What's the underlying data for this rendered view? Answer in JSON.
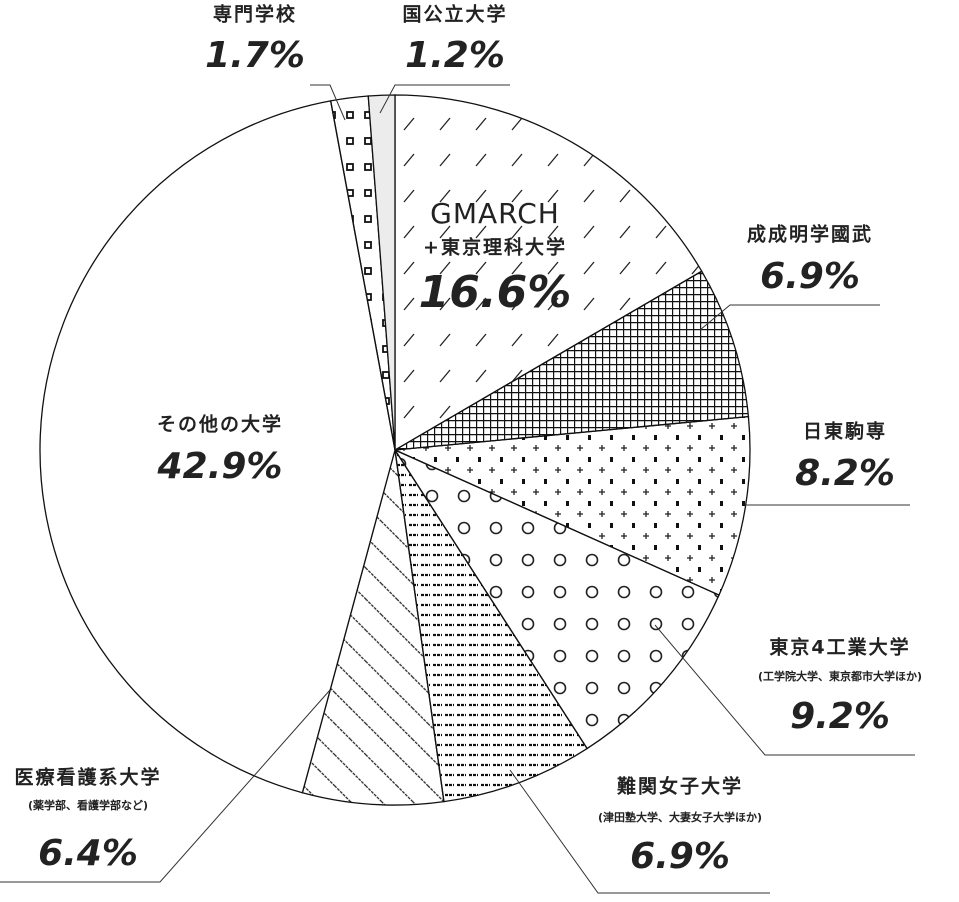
{
  "chart_data": {
    "type": "pie",
    "categories": [
      "GMARCH",
      "成成明学國武",
      "日東駒専",
      "東京4工業大学",
      "難関女子大学",
      "医療看護系大学",
      "その他の大学",
      "専門学校",
      "国公立大学"
    ],
    "sublabels": [
      "+東京理科大学",
      null,
      null,
      "(工学院大学、東京都市大学ほか)",
      "(津田塾大学、大妻女子大学ほか)",
      "(薬学部、看護学部など)",
      null,
      null,
      null
    ],
    "values": [
      16.6,
      6.9,
      8.2,
      9.2,
      6.9,
      6.4,
      42.9,
      1.7,
      1.2
    ],
    "value_labels": [
      "16.6%",
      "6.9%",
      "8.2%",
      "9.2%",
      "6.9%",
      "6.4%",
      "42.9%",
      "1.7%",
      "1.2%"
    ],
    "label_colors": [
      "#2f8a68",
      "#2f8a68",
      "#2f8a68",
      "#222222",
      "#222222",
      "#222222",
      "#222222",
      "#222222",
      "#222222"
    ]
  }
}
